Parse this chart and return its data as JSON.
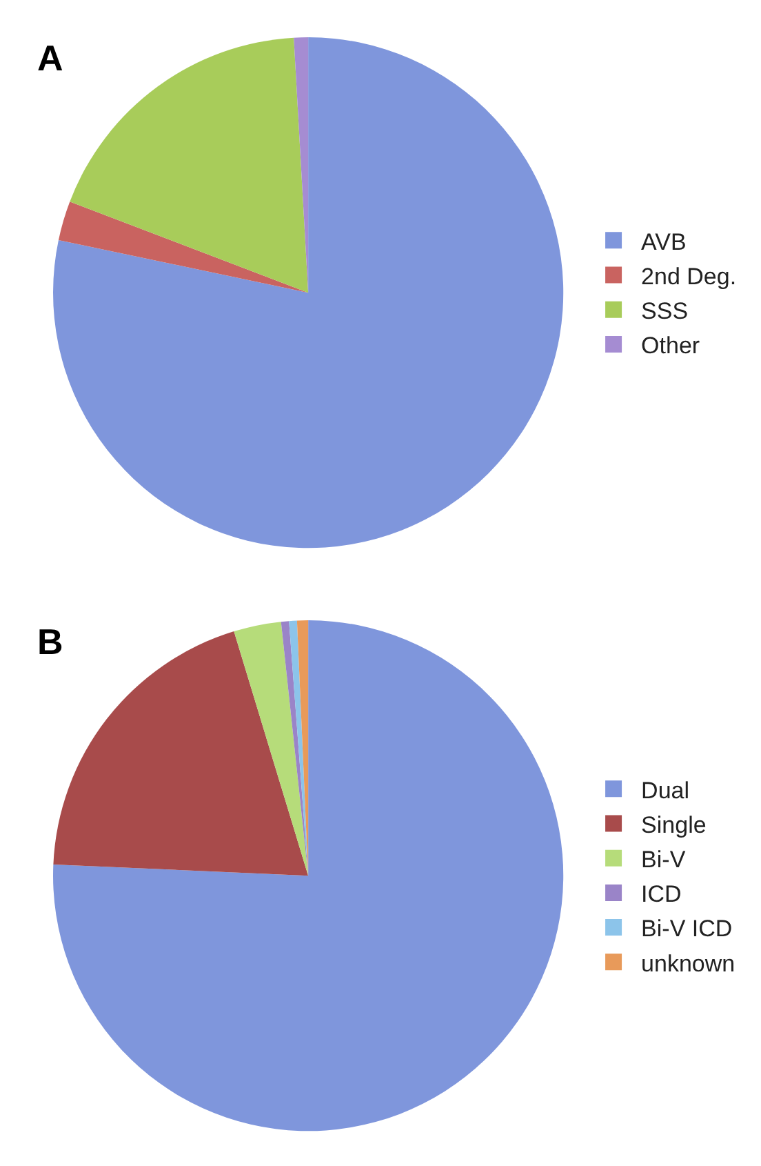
{
  "chart_data": [
    {
      "type": "pie",
      "title": "A",
      "categories": [
        "AVB",
        "2nd Deg.",
        "SSS",
        "Other"
      ],
      "values": [
        78.3,
        2.5,
        18.3,
        0.9
      ],
      "colors": [
        "#7f96dc",
        "#c96360",
        "#a8cc5a",
        "#a58cd2"
      ],
      "legend": "right"
    },
    {
      "type": "pie",
      "title": "B",
      "categories": [
        "Dual",
        "Single",
        "Bi-V",
        "ICD",
        "Bi-V ICD",
        "unknown"
      ],
      "values": [
        75.7,
        19.6,
        3.0,
        0.5,
        0.5,
        0.7
      ],
      "colors": [
        "#7f96dc",
        "#a84b4b",
        "#b6dc7a",
        "#9a84c8",
        "#8cc4ea",
        "#e89a5a"
      ],
      "legend": "right"
    }
  ]
}
